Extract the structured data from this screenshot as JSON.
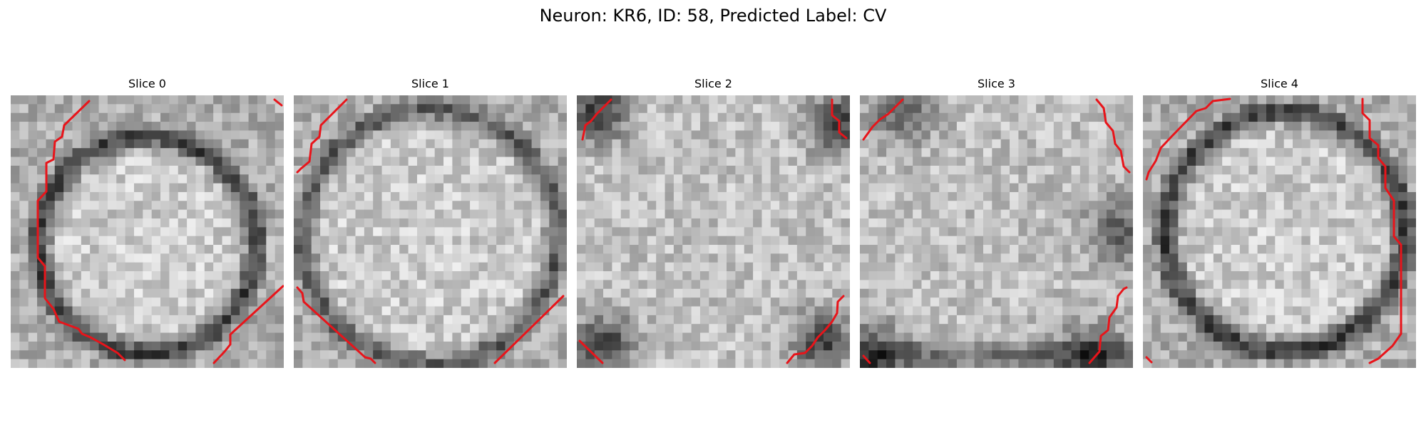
{
  "figure": {
    "title": "Neuron: KR6, ID: 58, Predicted Label: CV"
  },
  "panels": [
    {
      "title": "Slice 0",
      "theme": "ring",
      "seed": 11
    },
    {
      "title": "Slice 1",
      "theme": "ring-faint",
      "seed": 23
    },
    {
      "title": "Slice 2",
      "theme": "noise",
      "seed": 37
    },
    {
      "title": "Slice 3",
      "theme": "noise-light",
      "seed": 51
    },
    {
      "title": "Slice 4",
      "theme": "ring-right",
      "seed": 67
    }
  ],
  "colors": {
    "contour": "#e8141a",
    "background": "#ffffff"
  },
  "image": {
    "grid": 31,
    "colormap": "grayscale"
  }
}
